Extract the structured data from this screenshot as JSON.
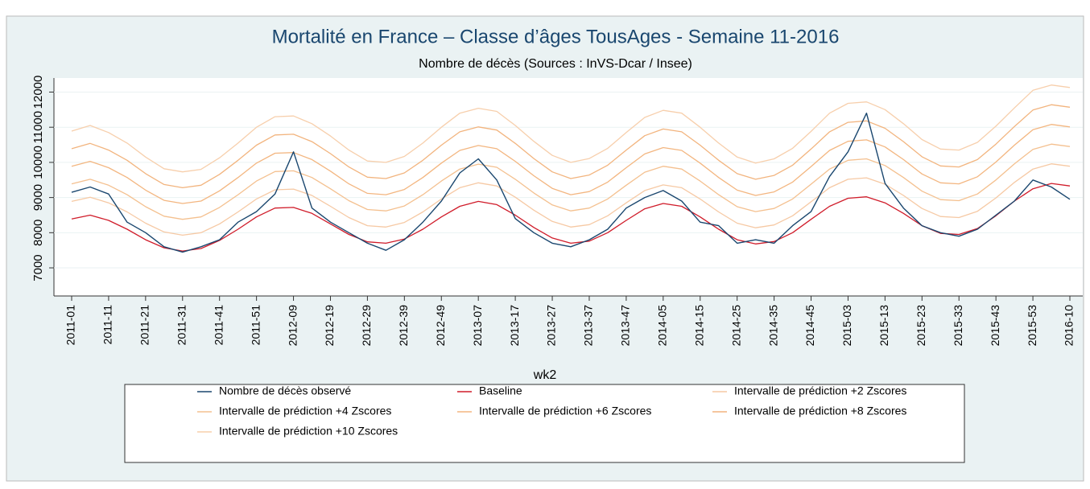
{
  "chart_data": {
    "type": "line",
    "title": "Mortalité en France – Classe d’âges  TousAges - Semaine 11-2016",
    "subtitle": "Nombre de décès (Sources : InVS-Dcar / Insee)",
    "x_label": "wk2",
    "categories": [
      "2011-01",
      null,
      "2011-11",
      null,
      "2011-21",
      null,
      "2011-31",
      null,
      "2011-41",
      null,
      "2011-51",
      null,
      "2012-09",
      null,
      "2012-19",
      null,
      "2012-29",
      null,
      "2012-39",
      null,
      "2012-49",
      null,
      "2013-07",
      null,
      "2013-17",
      null,
      "2013-27",
      null,
      "2013-37",
      null,
      "2013-47",
      null,
      "2014-05",
      null,
      "2014-15",
      null,
      "2014-25",
      null,
      "2014-35",
      null,
      "2014-45",
      null,
      "2015-03",
      null,
      "2015-13",
      null,
      "2015-23",
      null,
      "2015-33",
      null,
      "2015-43",
      null,
      "2015-53",
      null,
      "2016-10"
    ],
    "ylim": [
      6200,
      12400
    ],
    "yticks": [
      7000,
      8000,
      9000,
      10000,
      11000,
      12000
    ],
    "grid": true,
    "series": [
      {
        "name": "Nombre de décès observé",
        "color": "#1a476f",
        "values": [
          9150,
          9300,
          9100,
          8300,
          8000,
          7600,
          7450,
          7600,
          7800,
          8300,
          8600,
          9100,
          10300,
          8700,
          8300,
          8000,
          7700,
          7500,
          7800,
          8300,
          8900,
          9700,
          10100,
          9500,
          8400,
          8000,
          7700,
          7600,
          7800,
          8100,
          8700,
          9000,
          9200,
          8900,
          8300,
          8200,
          7700,
          7800,
          7700,
          8200,
          8600,
          9600,
          10300,
          11400,
          9400,
          8700,
          8200,
          8000,
          7900,
          8100,
          8500,
          8900,
          9500,
          9300,
          8950
        ]
      },
      {
        "name": "Baseline",
        "color": "#d01c2a",
        "values": [
          8390,
          8500,
          8350,
          8100,
          7800,
          7570,
          7480,
          7550,
          7780,
          8100,
          8450,
          8700,
          8720,
          8550,
          8250,
          7950,
          7740,
          7700,
          7820,
          8100,
          8450,
          8750,
          8890,
          8800,
          8500,
          8150,
          7850,
          7700,
          7760,
          8000,
          8350,
          8680,
          8830,
          8750,
          8450,
          8100,
          7800,
          7680,
          7750,
          8000,
          8380,
          8750,
          8980,
          9020,
          8850,
          8550,
          8200,
          7980,
          7950,
          8120,
          8480,
          8900,
          9250,
          9400,
          9330
        ]
      },
      {
        "name": "Intervalle de prédiction +2 Zscores",
        "color": "#f6c9a4",
        "values": [
          8890,
          9010,
          8850,
          8590,
          8270,
          8020,
          7930,
          8000,
          8250,
          8590,
          8960,
          9220,
          9240,
          9060,
          8750,
          8430,
          8200,
          8160,
          8290,
          8590,
          8960,
          9280,
          9420,
          9330,
          9010,
          8640,
          8320,
          8160,
          8230,
          8480,
          8850,
          9200,
          9360,
          9280,
          8960,
          8590,
          8270,
          8140,
          8220,
          8480,
          8880,
          9280,
          9520,
          9560,
          9380,
          9060,
          8690,
          8460,
          8430,
          8610,
          8990,
          9430,
          9810,
          9960,
          9890
        ]
      },
      {
        "name": "Intervalle de prédiction +4 Zscores",
        "color": "#f4c08f",
        "values": [
          9390,
          9520,
          9350,
          9080,
          8740,
          8470,
          8380,
          8450,
          8720,
          9080,
          9470,
          9740,
          9760,
          9570,
          9250,
          8910,
          8660,
          8620,
          8760,
          9080,
          9470,
          9810,
          9950,
          9860,
          9520,
          9130,
          8790,
          8620,
          8700,
          8960,
          9350,
          9720,
          9890,
          9810,
          9470,
          9080,
          8740,
          8600,
          8690,
          8960,
          9380,
          9810,
          10060,
          10100,
          9910,
          9570,
          9180,
          8940,
          8910,
          9100,
          9500,
          9960,
          10370,
          10520,
          10450
        ]
      },
      {
        "name": "Intervalle de prédiction +6 Zscores",
        "color": "#f3b680",
        "values": [
          9890,
          10030,
          9850,
          9570,
          9210,
          8920,
          8830,
          8900,
          9190,
          9570,
          9980,
          10260,
          10280,
          10080,
          9750,
          9390,
          9120,
          9080,
          9230,
          9570,
          9980,
          10340,
          10480,
          10390,
          10030,
          9620,
          9260,
          9080,
          9170,
          9440,
          9850,
          10240,
          10420,
          10340,
          9980,
          9570,
          9210,
          9060,
          9160,
          9440,
          9880,
          10340,
          10600,
          10640,
          10440,
          10080,
          9670,
          9420,
          9390,
          9590,
          10010,
          10490,
          10930,
          11080,
          11010
        ]
      },
      {
        "name": "Intervalle de prédiction +8 Zscores",
        "color": "#f2b47e",
        "values": [
          10390,
          10540,
          10350,
          10060,
          9680,
          9370,
          9280,
          9350,
          9660,
          10060,
          10490,
          10780,
          10800,
          10590,
          10250,
          9870,
          9580,
          9540,
          9700,
          10060,
          10490,
          10870,
          11010,
          10920,
          10540,
          10110,
          9730,
          9540,
          9640,
          9920,
          10350,
          10760,
          10950,
          10870,
          10490,
          10060,
          9680,
          9520,
          9630,
          9920,
          10380,
          10870,
          11140,
          11180,
          10970,
          10590,
          10160,
          9900,
          9870,
          10080,
          10520,
          11020,
          11490,
          11640,
          11570
        ]
      },
      {
        "name": "Intervalle de prédiction +10 Zscores",
        "color": "#f7cfac",
        "values": [
          10890,
          11050,
          10850,
          10550,
          10150,
          9820,
          9730,
          9800,
          10130,
          10550,
          11000,
          11300,
          11320,
          11100,
          10750,
          10350,
          10040,
          10000,
          10170,
          10550,
          11000,
          11400,
          11540,
          11450,
          11050,
          10600,
          10200,
          10000,
          10110,
          10400,
          10850,
          11280,
          11480,
          11400,
          11000,
          10550,
          10150,
          9980,
          10100,
          10400,
          10880,
          11400,
          11680,
          11720,
          11500,
          11100,
          10650,
          10380,
          10350,
          10570,
          11030,
          11550,
          12050,
          12200,
          12130
        ]
      }
    ]
  }
}
